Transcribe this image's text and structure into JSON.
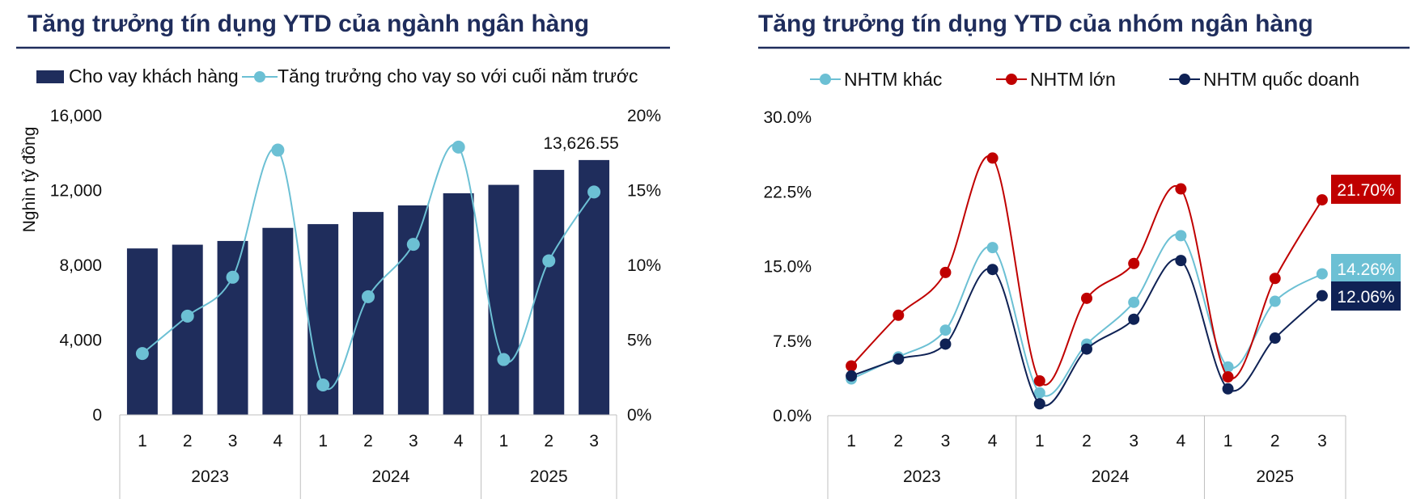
{
  "colors": {
    "title": "#1f2d5c",
    "bar": "#1f2d5c",
    "light_line": "#6cc0d4",
    "red_line": "#c00000",
    "navy_line": "#0f2255"
  },
  "chart_data": [
    {
      "type": "bar",
      "title": "Tăng trưởng tín dụng YTD của ngành ngân hàng",
      "categories": [
        "1",
        "2",
        "3",
        "4",
        "1",
        "2",
        "3",
        "4",
        "1",
        "2",
        "3"
      ],
      "groups": [
        {
          "label": "2023",
          "count": 4
        },
        {
          "label": "2024",
          "count": 4
        },
        {
          "label": "2025",
          "count": 3
        }
      ],
      "ylabel": "Nghìn tỷ đồng",
      "ylim": [
        0,
        16000
      ],
      "y_ticks": [
        "0",
        "4,000",
        "8,000",
        "12,000",
        "16,000"
      ],
      "y2lim": [
        0,
        20
      ],
      "y2_ticks": [
        "0%",
        "5%",
        "10%",
        "15%",
        "20%"
      ],
      "series": [
        {
          "name": "Cho vay khách hàng",
          "kind": "bar",
          "values": [
            8900,
            9100,
            9300,
            10000,
            10200,
            10850,
            11200,
            11850,
            12300,
            13100,
            13626.55
          ]
        },
        {
          "name": "Tăng trưởng cho vay so với cuối năm trước",
          "kind": "line",
          "axis": "right",
          "values": [
            4.1,
            6.6,
            9.2,
            17.7,
            2.0,
            7.9,
            11.4,
            17.9,
            3.7,
            10.3,
            14.9
          ]
        }
      ],
      "annotation": "13,626.55"
    },
    {
      "type": "line",
      "title": "Tăng trưởng tín dụng YTD của nhóm ngân hàng",
      "categories": [
        "1",
        "2",
        "3",
        "4",
        "1",
        "2",
        "3",
        "4",
        "1",
        "2",
        "3"
      ],
      "groups": [
        {
          "label": "2023",
          "count": 4
        },
        {
          "label": "2024",
          "count": 4
        },
        {
          "label": "2025",
          "count": 3
        }
      ],
      "ylim": [
        0,
        30
      ],
      "y_ticks": [
        "0.0%",
        "7.5%",
        "15.0%",
        "22.5%",
        "30.0%"
      ],
      "series": [
        {
          "name": "NHTM khác",
          "values": [
            3.7,
            5.9,
            8.6,
            16.9,
            2.3,
            7.2,
            11.4,
            18.1,
            4.9,
            11.5,
            14.26
          ],
          "end_label": "14.26%"
        },
        {
          "name": "NHTM lớn",
          "values": [
            5.0,
            10.1,
            14.4,
            25.9,
            3.5,
            11.8,
            15.3,
            22.8,
            3.9,
            13.8,
            21.7
          ],
          "end_label": "21.70%"
        },
        {
          "name": "NHTM quốc doanh",
          "values": [
            4.0,
            5.7,
            7.2,
            14.7,
            1.2,
            6.7,
            9.7,
            15.6,
            2.7,
            7.8,
            12.06
          ],
          "end_label": "12.06%"
        }
      ]
    }
  ]
}
